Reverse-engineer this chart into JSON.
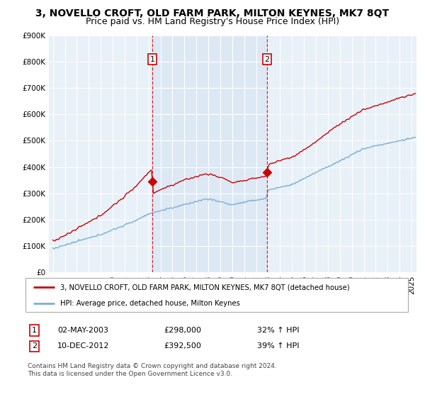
{
  "title": "3, NOVELLO CROFT, OLD FARM PARK, MILTON KEYNES, MK7 8QT",
  "subtitle": "Price paid vs. HM Land Registry's House Price Index (HPI)",
  "title_fontsize": 10,
  "subtitle_fontsize": 9,
  "sale1_label": "1",
  "sale2_label": "2",
  "legend_line1": "3, NOVELLO CROFT, OLD FARM PARK, MILTON KEYNES, MK7 8QT (detached house)",
  "legend_line2": "HPI: Average price, detached house, Milton Keynes",
  "table_row1": [
    "1",
    "02-MAY-2003",
    "£298,000",
    "32% ↑ HPI"
  ],
  "table_row2": [
    "2",
    "10-DEC-2012",
    "£392,500",
    "39% ↑ HPI"
  ],
  "footnote": "Contains HM Land Registry data © Crown copyright and database right 2024.\nThis data is licensed under the Open Government Licence v3.0.",
  "price_color": "#cc0000",
  "hpi_color": "#7ab0d4",
  "vline_color": "#cc0000",
  "shade_color": "#dce8f5",
  "background_color": "#e8f0f8",
  "ylim_min": 0,
  "ylim_max": 900000,
  "tick_fontsize": 7.5
}
